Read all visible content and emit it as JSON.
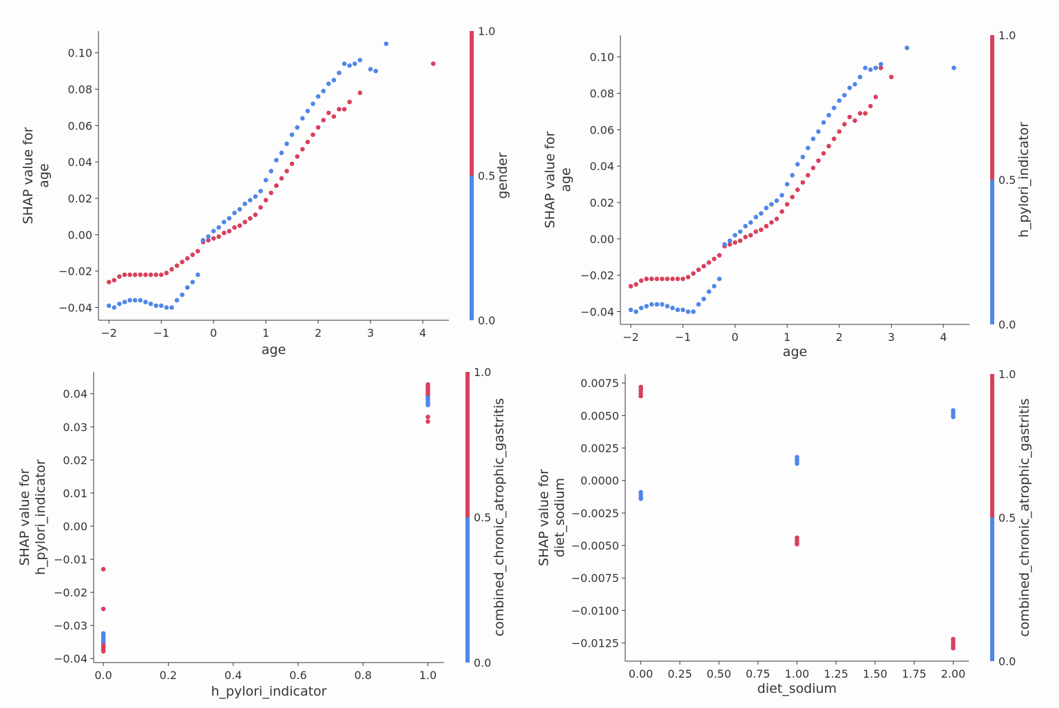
{
  "colors": {
    "low": "#4f86e8",
    "high": "#d9405c",
    "axis": "#333333"
  },
  "chart_data": [
    {
      "type": "scatter",
      "xlabel": "age",
      "ylabel": [
        "SHAP value for",
        "age"
      ],
      "xlim": [
        -2.2,
        4.5
      ],
      "ylim": [
        -0.047,
        0.112
      ],
      "xticks": [
        -2,
        -1,
        0,
        1,
        2,
        3,
        4
      ],
      "xtick_labels": [
        "−2",
        "−1",
        "0",
        "1",
        "2",
        "3",
        "4"
      ],
      "yticks": [
        -0.04,
        -0.02,
        0.0,
        0.02,
        0.04,
        0.06,
        0.08,
        0.1
      ],
      "ytick_labels": [
        "−0.04",
        "−0.02",
        "0.00",
        "0.02",
        "0.04",
        "0.06",
        "0.08",
        "0.10"
      ],
      "colorbar": {
        "label": "gender",
        "ticks": [
          "0.0",
          "0.5",
          "1.0"
        ]
      },
      "series": [
        {
          "name": "gender=1.0 (red)",
          "color_value": 1,
          "x": [
            -2.0,
            -1.9,
            -1.8,
            -1.7,
            -1.6,
            -1.5,
            -1.4,
            -1.3,
            -1.2,
            -1.1,
            -1.0,
            -0.9,
            -0.8,
            -0.7,
            -0.6,
            -0.5,
            -0.4,
            -0.3,
            -0.2,
            -0.1,
            0.0,
            0.1,
            0.2,
            0.3,
            0.4,
            0.5,
            0.6,
            0.7,
            0.8,
            0.9,
            1.0,
            1.1,
            1.2,
            1.3,
            1.4,
            1.5,
            1.6,
            1.7,
            1.8,
            1.9,
            2.0,
            2.1,
            2.2,
            2.3,
            2.4,
            2.5,
            2.6,
            2.8,
            4.2
          ],
          "y": [
            -0.026,
            -0.025,
            -0.023,
            -0.022,
            -0.022,
            -0.022,
            -0.022,
            -0.022,
            -0.022,
            -0.022,
            -0.022,
            -0.021,
            -0.019,
            -0.017,
            -0.015,
            -0.013,
            -0.011,
            -0.009,
            -0.004,
            -0.003,
            -0.002,
            -0.001,
            0.001,
            0.002,
            0.004,
            0.005,
            0.007,
            0.009,
            0.011,
            0.015,
            0.019,
            0.023,
            0.027,
            0.031,
            0.035,
            0.039,
            0.043,
            0.047,
            0.051,
            0.055,
            0.059,
            0.063,
            0.067,
            0.065,
            0.069,
            0.069,
            0.073,
            0.078,
            0.094
          ]
        },
        {
          "name": "gender=0.0 (blue)",
          "color_value": 0,
          "x": [
            -2.0,
            -1.9,
            -1.8,
            -1.7,
            -1.6,
            -1.5,
            -1.4,
            -1.3,
            -1.2,
            -1.1,
            -1.0,
            -0.9,
            -0.8,
            -0.7,
            -0.6,
            -0.5,
            -0.4,
            -0.3,
            -0.2,
            -0.1,
            0.0,
            0.1,
            0.2,
            0.3,
            0.4,
            0.5,
            0.6,
            0.7,
            0.8,
            0.9,
            1.0,
            1.1,
            1.2,
            1.3,
            1.4,
            1.5,
            1.6,
            1.7,
            1.8,
            1.9,
            2.0,
            2.1,
            2.2,
            2.3,
            2.4,
            2.5,
            2.6,
            2.7,
            2.8,
            3.0,
            3.1,
            3.3
          ],
          "y": [
            -0.039,
            -0.04,
            -0.038,
            -0.037,
            -0.036,
            -0.036,
            -0.036,
            -0.037,
            -0.038,
            -0.039,
            -0.039,
            -0.04,
            -0.04,
            -0.036,
            -0.033,
            -0.029,
            -0.026,
            -0.022,
            -0.003,
            -0.001,
            0.002,
            0.004,
            0.007,
            0.009,
            0.012,
            0.014,
            0.017,
            0.019,
            0.021,
            0.024,
            0.03,
            0.035,
            0.041,
            0.045,
            0.05,
            0.055,
            0.059,
            0.064,
            0.068,
            0.072,
            0.076,
            0.079,
            0.083,
            0.085,
            0.089,
            0.094,
            0.093,
            0.094,
            0.096,
            0.091,
            0.09,
            0.105
          ]
        }
      ]
    },
    {
      "type": "scatter",
      "xlabel": "age",
      "ylabel": [
        "SHAP value for",
        "age"
      ],
      "xlim": [
        -2.2,
        4.5
      ],
      "ylim": [
        -0.047,
        0.112
      ],
      "xticks": [
        -2,
        -1,
        0,
        1,
        2,
        3,
        4
      ],
      "xtick_labels": [
        "−2",
        "−1",
        "0",
        "1",
        "2",
        "3",
        "4"
      ],
      "yticks": [
        -0.04,
        -0.02,
        0.0,
        0.02,
        0.04,
        0.06,
        0.08,
        0.1
      ],
      "ytick_labels": [
        "−0.04",
        "−0.02",
        "0.00",
        "0.02",
        "0.04",
        "0.06",
        "0.08",
        "0.10"
      ],
      "colorbar": {
        "label": "h_pylori_indicator",
        "ticks": [
          "0.0",
          "0.5",
          "1.0"
        ]
      },
      "series": [
        {
          "name": "h_pylori_indicator=1.0 (red)",
          "color_value": 1,
          "x": [
            -2.0,
            -1.9,
            -1.8,
            -1.7,
            -1.6,
            -1.5,
            -1.4,
            -1.3,
            -1.2,
            -1.1,
            -1.0,
            -0.9,
            -0.8,
            -0.7,
            -0.6,
            -0.5,
            -0.4,
            -0.3,
            -0.2,
            -0.1,
            0.0,
            0.1,
            0.2,
            0.3,
            0.4,
            0.5,
            0.6,
            0.7,
            0.8,
            0.9,
            1.0,
            1.1,
            1.2,
            1.3,
            1.4,
            1.5,
            1.6,
            1.7,
            1.8,
            1.9,
            2.0,
            2.1,
            2.2,
            2.3,
            2.4,
            2.5,
            2.6,
            2.7,
            2.8,
            3.0
          ],
          "y": [
            -0.026,
            -0.025,
            -0.023,
            -0.022,
            -0.022,
            -0.022,
            -0.022,
            -0.022,
            -0.022,
            -0.022,
            -0.022,
            -0.021,
            -0.019,
            -0.017,
            -0.015,
            -0.013,
            -0.011,
            -0.009,
            -0.004,
            -0.003,
            -0.002,
            -0.001,
            0.001,
            0.002,
            0.004,
            0.005,
            0.007,
            0.009,
            0.011,
            0.015,
            0.019,
            0.023,
            0.027,
            0.031,
            0.035,
            0.039,
            0.043,
            0.047,
            0.051,
            0.055,
            0.059,
            0.063,
            0.067,
            0.065,
            0.069,
            0.069,
            0.073,
            0.078,
            0.094,
            0.089
          ]
        },
        {
          "name": "h_pylori_indicator=0.0 (blue)",
          "color_value": 0,
          "x": [
            -2.0,
            -1.9,
            -1.8,
            -1.7,
            -1.6,
            -1.5,
            -1.4,
            -1.3,
            -1.2,
            -1.1,
            -1.0,
            -0.9,
            -0.8,
            -0.7,
            -0.6,
            -0.5,
            -0.4,
            -0.3,
            -0.2,
            -0.1,
            0.0,
            0.1,
            0.2,
            0.3,
            0.4,
            0.5,
            0.6,
            0.7,
            0.8,
            0.9,
            1.0,
            1.1,
            1.2,
            1.3,
            1.4,
            1.5,
            1.6,
            1.7,
            1.8,
            1.9,
            2.0,
            2.1,
            2.2,
            2.3,
            2.4,
            2.5,
            2.6,
            2.7,
            2.8,
            3.3,
            4.2
          ],
          "y": [
            -0.039,
            -0.04,
            -0.038,
            -0.037,
            -0.036,
            -0.036,
            -0.036,
            -0.037,
            -0.038,
            -0.039,
            -0.039,
            -0.04,
            -0.04,
            -0.036,
            -0.033,
            -0.029,
            -0.026,
            -0.022,
            -0.003,
            -0.001,
            0.002,
            0.004,
            0.007,
            0.009,
            0.012,
            0.014,
            0.017,
            0.019,
            0.021,
            0.024,
            0.03,
            0.035,
            0.041,
            0.045,
            0.05,
            0.055,
            0.059,
            0.064,
            0.068,
            0.072,
            0.076,
            0.079,
            0.083,
            0.085,
            0.089,
            0.094,
            0.093,
            0.094,
            0.096,
            0.105,
            0.094
          ]
        }
      ]
    },
    {
      "type": "scatter",
      "xlabel": "h_pylori_indicator",
      "ylabel": [
        "SHAP value for",
        "h_pylori_indicator"
      ],
      "xlim": [
        -0.03,
        1.05
      ],
      "ylim": [
        -0.0412,
        0.0466
      ],
      "xticks": [
        0.0,
        0.2,
        0.4,
        0.6,
        0.8,
        1.0
      ],
      "xtick_labels": [
        "0.0",
        "0.2",
        "0.4",
        "0.6",
        "0.8",
        "1.0"
      ],
      "yticks": [
        -0.04,
        -0.03,
        -0.02,
        -0.01,
        0.0,
        0.01,
        0.02,
        0.03,
        0.04
      ],
      "ytick_labels": [
        "−0.04",
        "−0.03",
        "−0.02",
        "−0.01",
        "0.00",
        "0.01",
        "0.02",
        "0.03",
        "0.04"
      ],
      "colorbar": {
        "label": "combined_chronic_atrophic_gastritis",
        "ticks": [
          "0.0",
          "0.5",
          "1.0"
        ]
      },
      "series": [
        {
          "name": "combined_chronic_atrophic_gastritis=0.0 (blue)",
          "color_value": 0,
          "x": [
            0.0,
            0.0,
            0.0,
            0.0,
            0.0,
            0.0,
            0.0,
            1.0,
            1.0,
            1.0,
            1.0,
            1.0,
            1.0
          ],
          "y": [
            -0.0324,
            -0.033,
            -0.0336,
            -0.0342,
            -0.0348,
            -0.0354,
            -0.036,
            0.0366,
            0.0372,
            0.0378,
            0.0384,
            0.039,
            0.0396
          ]
        },
        {
          "name": "combined_chronic_atrophic_gastritis=1.0 (red)",
          "color_value": 1,
          "x": [
            0.0,
            0.0,
            0.0,
            0.0,
            0.0,
            0.0,
            1.0,
            1.0,
            1.0,
            1.0,
            1.0,
            1.0,
            1.0,
            1.0
          ],
          "y": [
            -0.013,
            -0.025,
            -0.036,
            -0.0366,
            -0.0372,
            -0.0378,
            0.0316,
            0.033,
            0.04,
            0.0406,
            0.0412,
            0.0418,
            0.0424,
            0.0428
          ]
        }
      ]
    },
    {
      "type": "scatter",
      "xlabel": "diet_sodium",
      "ylabel": [
        "SHAP value for",
        "diet_sodium"
      ],
      "xlim": [
        -0.1,
        2.1
      ],
      "ylim": [
        -0.0139,
        0.0082
      ],
      "xticks": [
        0.0,
        0.25,
        0.5,
        0.75,
        1.0,
        1.25,
        1.5,
        1.75,
        2.0
      ],
      "xtick_labels": [
        "0.00",
        "0.25",
        "0.50",
        "0.75",
        "1.00",
        "1.25",
        "1.50",
        "1.75",
        "2.00"
      ],
      "yticks": [
        -0.0125,
        -0.01,
        -0.0075,
        -0.005,
        -0.0025,
        0.0,
        0.0025,
        0.005,
        0.0075
      ],
      "ytick_labels": [
        "−0.0125",
        "−0.0100",
        "−0.0075",
        "−0.0050",
        "−0.0025",
        "0.0000",
        "0.0025",
        "0.0050",
        "0.0075"
      ],
      "colorbar": {
        "label": "combined_chronic_atrophic_gastritis",
        "ticks": [
          "0.0",
          "0.5",
          "1.0"
        ]
      },
      "series": [
        {
          "name": "combined_chronic_atrophic_gastritis=1.0 (red)",
          "color_value": 1,
          "x": [
            0.0,
            0.0,
            0.0,
            0.0,
            0.0,
            1.0,
            1.0,
            1.0,
            1.0,
            2.0,
            2.0,
            2.0,
            2.0,
            2.0
          ],
          "y": [
            0.0065,
            0.0067,
            0.0069,
            0.0071,
            0.0072,
            -0.0044,
            -0.0046,
            -0.0048,
            -0.0049,
            -0.0122,
            -0.0124,
            -0.0126,
            -0.0128,
            -0.0129
          ]
        },
        {
          "name": "combined_chronic_atrophic_gastritis=0.0 (blue)",
          "color_value": 0,
          "x": [
            0.0,
            0.0,
            0.0,
            0.0,
            1.0,
            1.0,
            1.0,
            1.0,
            2.0,
            2.0,
            2.0,
            2.0
          ],
          "y": [
            -0.0009,
            -0.0011,
            -0.0013,
            -0.0014,
            0.0018,
            0.0016,
            0.0015,
            0.0013,
            0.0054,
            0.0052,
            0.005,
            0.0049
          ]
        }
      ]
    }
  ]
}
